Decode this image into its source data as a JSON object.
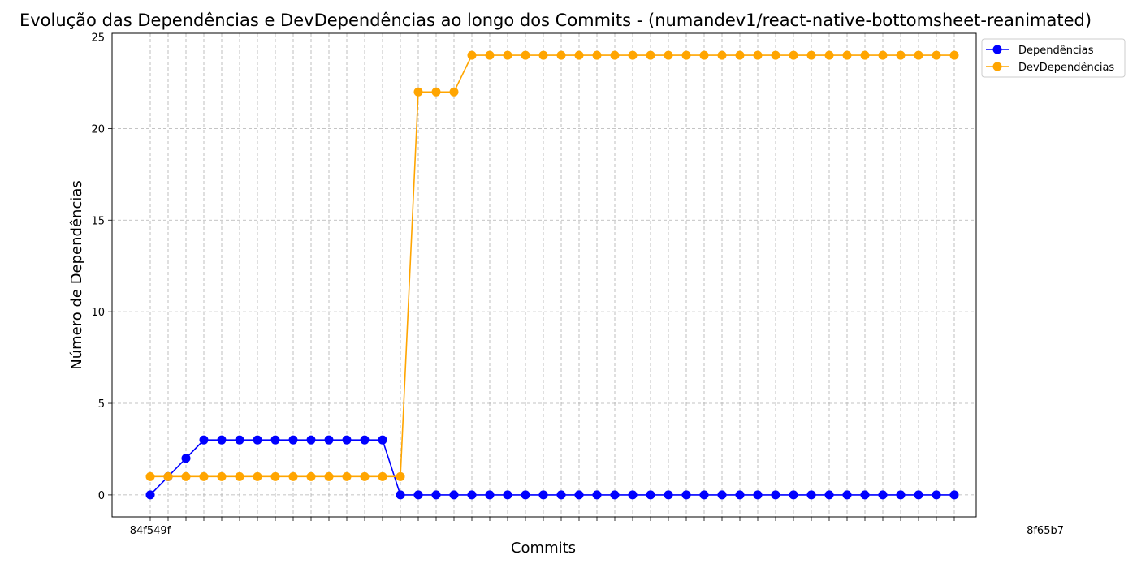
{
  "chart_data": {
    "type": "line",
    "title": "Evolução das Dependências e DevDependências ao longo dos Commits - (numandev1/react-native-bottomsheet-reanimated)",
    "xlabel": "Commits",
    "ylabel": "Número de Dependências",
    "ylim": [
      -1.2,
      25.2
    ],
    "yticks": [
      0,
      5,
      10,
      15,
      20,
      25
    ],
    "grid": true,
    "legend_position": "top-right-outside",
    "x_first_label": "84f549f",
    "x_last_label": "8f65b7",
    "series": [
      {
        "name": "Dependências",
        "color": "#0000ff",
        "values": [
          0,
          1,
          2,
          3,
          3,
          3,
          3,
          3,
          3,
          3,
          3,
          3,
          3,
          3,
          0,
          0,
          0,
          0,
          0,
          0,
          0,
          0,
          0,
          0,
          0,
          0,
          0,
          0,
          0,
          0,
          0,
          0,
          0,
          0,
          0,
          0,
          0,
          0,
          0,
          0,
          0,
          0,
          0,
          0,
          0,
          0
        ]
      },
      {
        "name": "DevDependências",
        "color": "#ffa500",
        "values": [
          1,
          1,
          1,
          1,
          1,
          1,
          1,
          1,
          1,
          1,
          1,
          1,
          1,
          1,
          1,
          22,
          22,
          22,
          24,
          24,
          24,
          24,
          24,
          24,
          24,
          24,
          24,
          24,
          24,
          24,
          24,
          24,
          24,
          24,
          24,
          24,
          24,
          24,
          24,
          24,
          24,
          24,
          24,
          24,
          24,
          24
        ]
      }
    ]
  }
}
